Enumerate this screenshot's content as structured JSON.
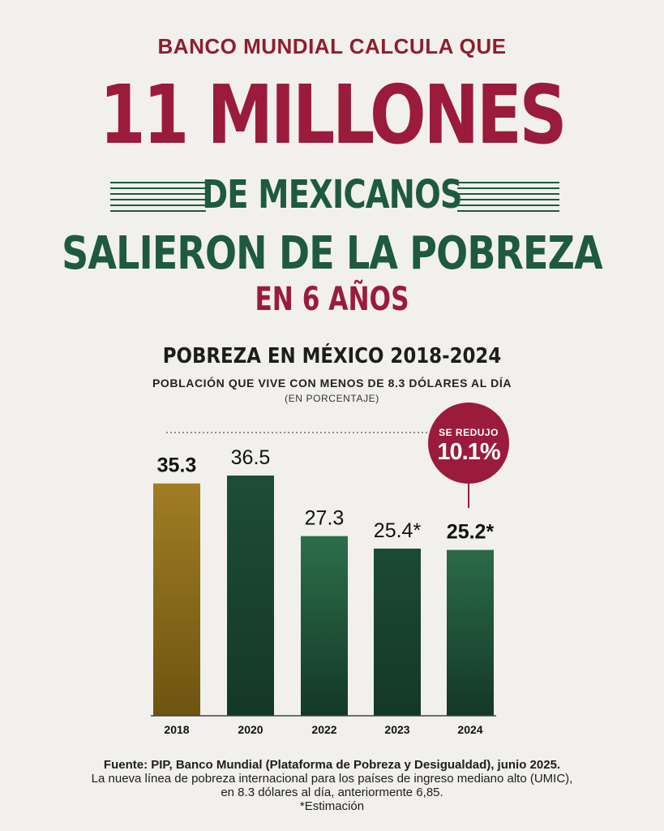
{
  "header": {
    "kicker": "BANCO MUNDIAL CALCULA QUE",
    "headline": "11 MILLONES",
    "line2": "DE MEXICANOS",
    "line3": "SALIERON DE LA POBREZA",
    "line4": "EN 6 AÑOS"
  },
  "badge": {
    "label": "SE REDUJO",
    "value": "10.1%"
  },
  "chart_data": {
    "type": "bar",
    "title": "POBREZA EN MÉXICO 2018-2024",
    "subtitle": "POBLACIÓN QUE VIVE CON MENOS DE 8.3 DÓLARES AL DÍA",
    "unit_note": "(EN PORCENTAJE)",
    "categories": [
      "2018",
      "2020",
      "2022",
      "2023",
      "2024"
    ],
    "values": [
      35.3,
      36.5,
      27.3,
      25.4,
      25.2
    ],
    "value_labels": [
      "35.3",
      "36.5",
      "27.3",
      "25.4*",
      "25.2*"
    ],
    "bar_colors": [
      "#a07d24",
      "#1e4d35",
      "#2c6e4a",
      "#1c4a33",
      "#2b6a48"
    ],
    "ylim": [
      0,
      36.5
    ],
    "grid": false
  },
  "footer": {
    "source": "Fuente: PIP, Banco Mundial (Plataforma de Pobreza y Desigualdad), junio 2025.",
    "note1": "La nueva línea de pobreza internacional para los países de ingreso mediano alto (UMIC),",
    "note2": "en 8.3 dólares al día, anteriormente 6,85.",
    "note3": "*Estimación"
  },
  "colors": {
    "crimson": "#9b1b3c",
    "green": "#1e5a3e",
    "gold": "#a07d24",
    "background": "#f1f0ed"
  }
}
